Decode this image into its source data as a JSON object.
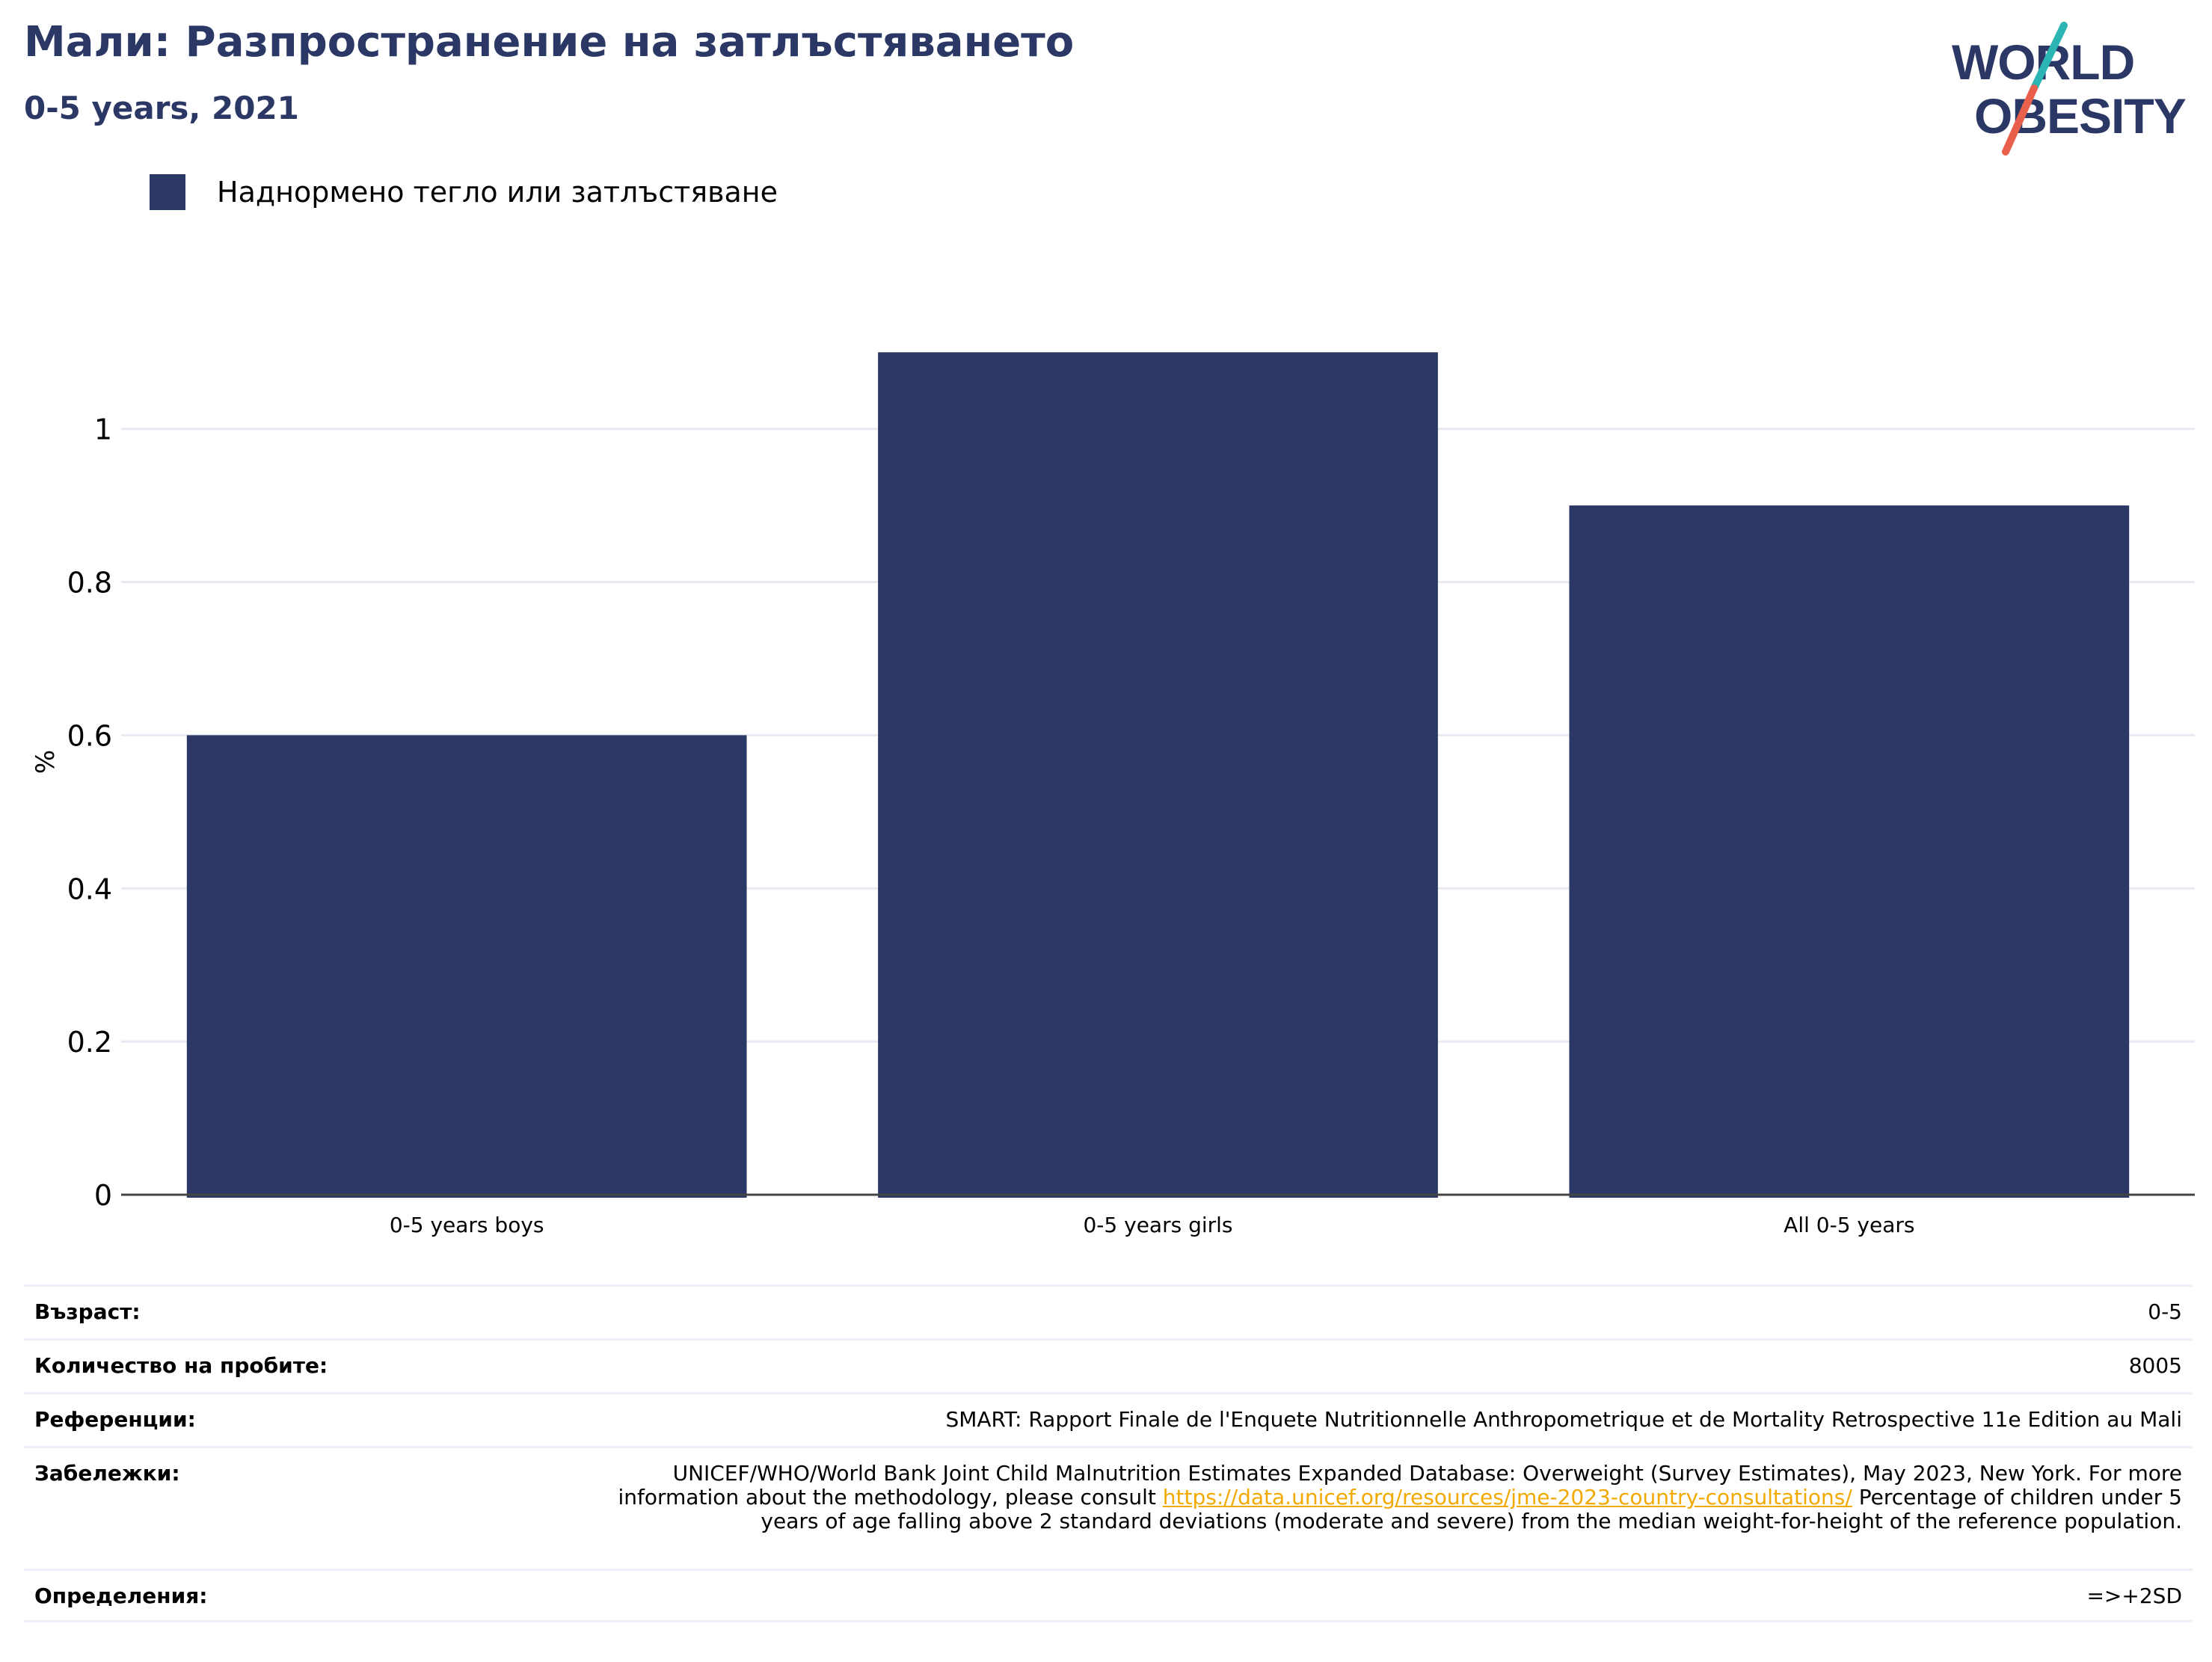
{
  "header": {
    "title": "Мали: Разпространение на затлъстяването",
    "subtitle": "0-5 years, 2021"
  },
  "logo": {
    "line1": "WORLD",
    "line2": "OBESITY",
    "colors": {
      "text": "#2b3764",
      "teal": "#2bb5b3",
      "coral": "#e8604c"
    }
  },
  "legend": {
    "label": "Наднормено тегло или затлъстяване",
    "color": "#2b3764"
  },
  "chart_data": {
    "type": "bar",
    "categories": [
      "0-5 years boys",
      "0-5 years girls",
      "All 0-5 years"
    ],
    "series": [
      {
        "name": "Наднормено тегло или затлъстяване",
        "values": [
          0.6,
          1.1,
          0.9
        ],
        "color": "#2b3764"
      }
    ],
    "ylabel": "%",
    "xlabel": "",
    "ylim": [
      0,
      1.15
    ],
    "yticks": [
      0,
      0.2,
      0.4,
      0.6,
      0.8,
      1
    ],
    "ytick_labels": [
      "0",
      "0.2",
      "0.4",
      "0.6",
      "0.8",
      "1"
    ],
    "grid": true,
    "legend_position": "top-left"
  },
  "info": {
    "rows": [
      {
        "label": "Възраст:",
        "value": "0-5"
      },
      {
        "label": "Количество на пробите:",
        "value": "8005"
      },
      {
        "label": "Референции:",
        "value": "SMART: Rapport Finale de l'Enquete Nutritionnelle Anthropometrique et de Mortality Retrospective 11e Edition au Mali"
      },
      {
        "label": "Забележки:",
        "value_before": "UNICEF/WHO/World Bank Joint Child Malnutrition Estimates Expanded Database: Overweight (Survey Estimates), May 2023, New York. For more information about the methodology, please consult ",
        "link": "https://data.unicef.org/resources/jme-2023-country-consultations/",
        "value_after": " Percentage of children under 5 years of age falling above 2 standard deviations (moderate and severe) from the median weight-for-height of the reference population."
      },
      {
        "label": "Определения:",
        "value": "=>+2SD"
      }
    ]
  }
}
